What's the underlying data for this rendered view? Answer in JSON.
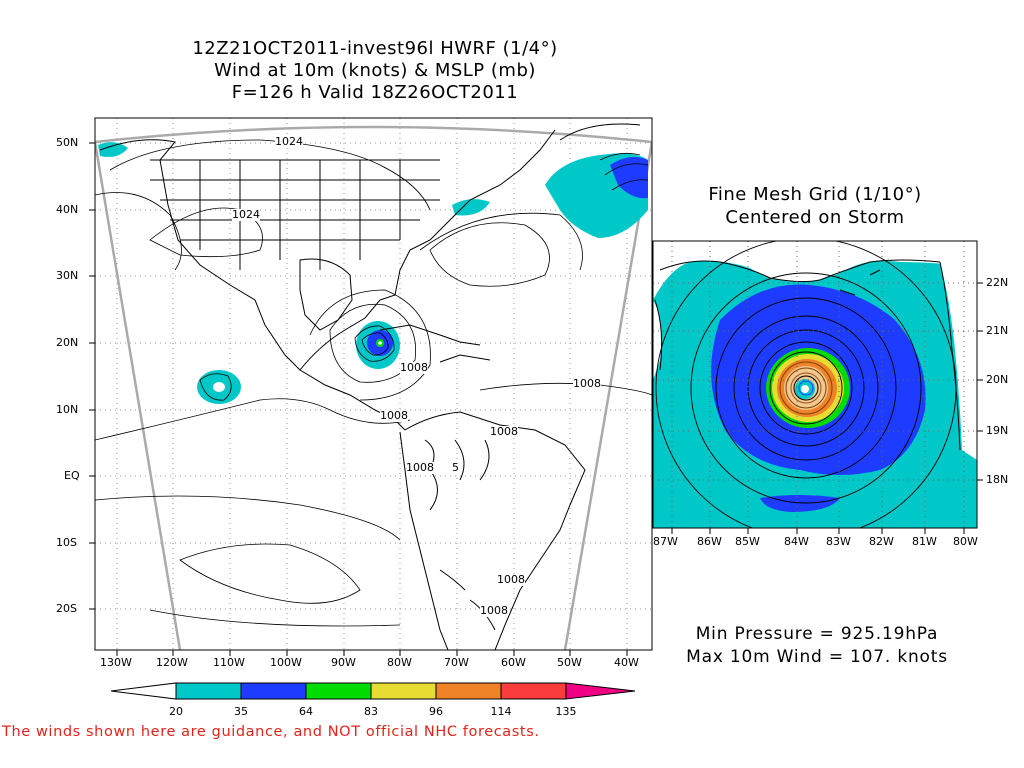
{
  "title": {
    "line1": "12Z21OCT2011-invest96l HWRF (1/4°)",
    "line2": "Wind at 10m (knots) & MSLP (mb)",
    "line3": "F=126 h Valid 18Z26OCT2011"
  },
  "main_map": {
    "lat_labels": [
      "50N",
      "40N",
      "30N",
      "20N",
      "10N",
      "EQ",
      "10S",
      "20S"
    ],
    "lon_labels": [
      "130W",
      "120W",
      "110W",
      "100W",
      "90W",
      "80W",
      "70W",
      "60W",
      "50W",
      "40W"
    ],
    "isobar_labels": [
      "1024",
      "1024",
      "1008",
      "1008",
      "1008",
      "1008",
      "1008",
      "1008",
      "1008",
      "5"
    ]
  },
  "fine_mesh": {
    "title_line1": "Fine Mesh Grid (1/10°)",
    "title_line2": "Centered on Storm",
    "lat_labels": [
      "22N",
      "21N",
      "20N",
      "19N",
      "18N"
    ],
    "lon_labels": [
      "87W",
      "86W",
      "85W",
      "84W",
      "83W",
      "82W",
      "81W",
      "80W"
    ]
  },
  "stats": {
    "min_pressure": "Min Pressure = 925.19hPa",
    "max_wind": "Max 10m Wind = 107. knots"
  },
  "colorbar": {
    "levels": [
      "20",
      "35",
      "64",
      "83",
      "96",
      "114",
      "135"
    ],
    "colors": [
      "#00c8c8",
      "#1e3cff",
      "#00dc00",
      "#e6dc32",
      "#f08228",
      "#fa3c3c",
      "#f00082"
    ]
  },
  "disclaimer": "The winds shown here are guidance, and NOT official NHC forecasts."
}
